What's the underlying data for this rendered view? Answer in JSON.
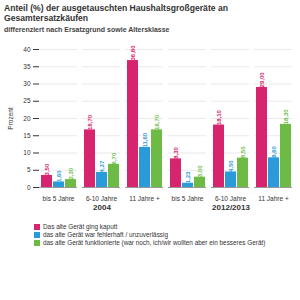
{
  "chart_data": {
    "type": "bar",
    "title": "Anteil (%) der ausgetauschten Haushaltsgroßgeräte an Gesamtersatzkäufen",
    "subtitle": "differenziert nach Ersatzgrund sowie Altersklasse",
    "y_label": "Prozent",
    "categories": [
      "bis 5 Jahre",
      "6-10 Jahre",
      "11 Jahre +",
      "bis 5 Jahre",
      "6-10 Jahre",
      "11 Jahre +"
    ],
    "group_labels": [
      "2004",
      "2012/2013"
    ],
    "series": [
      {
        "name": "Das alte Gerät ging kaputt",
        "color": "#d6246e",
        "values": [
          3.5,
          16.7,
          36.8,
          8.3,
          18.1,
          29.0
        ],
        "value_labels": [
          "3,50",
          "16,70",
          "36,80",
          "8,30",
          "18,10",
          "29,00"
        ]
      },
      {
        "name": "das alte Gerät war fehlerhaft / unzuverlässig",
        "color": "#2b9ad8",
        "values": [
          1.6,
          4.37,
          11.6,
          1.23,
          4.5,
          8.6
        ],
        "value_labels": [
          "1,60",
          "4,37",
          "11,60",
          "1,23",
          "4,50",
          "8,60"
        ]
      },
      {
        "name": "das alte Gerät funktionierte (war noch, ich/wir wollten aber ein besseres Gerät)",
        "color": "#6dbb45",
        "values": [
          2.3,
          6.7,
          16.7,
          3.0,
          8.5,
          18.3
        ],
        "value_labels": [
          "2,30",
          "6,70",
          "16,70",
          "3,00",
          "8,50",
          "18,30"
        ]
      }
    ],
    "ylim": [
      0,
      40
    ],
    "yticks": [
      0,
      5,
      10,
      15,
      20,
      25,
      30,
      35,
      40
    ],
    "grid": true,
    "data_labels": true
  }
}
